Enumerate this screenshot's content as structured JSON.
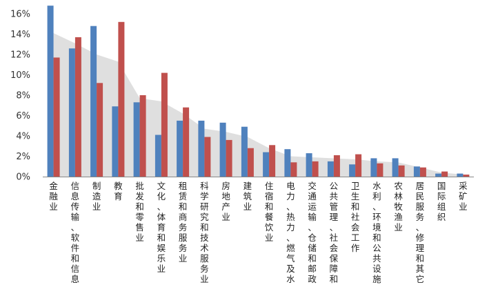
{
  "chart_data": {
    "type": "bar",
    "title": "",
    "xlabel": "",
    "ylabel": "",
    "ylim": [
      0,
      0.16
    ],
    "yticks": [
      "0%",
      "2%",
      "4%",
      "6%",
      "8%",
      "10%",
      "12%",
      "14%",
      "16%"
    ],
    "grid": false,
    "legend": "none",
    "categories": [
      "金融业",
      "信息传输、软件和信息",
      "制造业",
      "教育",
      "批发和零售业",
      "文化、体育和娱乐业",
      "租赁和商务服务业",
      "科学研究和技术服务业",
      "房地产业",
      "建筑业",
      "住宿和餐饮业",
      "电力、热力、燃气及水",
      "交通运输、仓储和邮政",
      "公共管理、社会保障和",
      "卫生和社会工作",
      "水利、环境和公共设施",
      "农林牧渔业",
      "居民服务、修理和其它",
      "国际组织",
      "采矿业"
    ],
    "series": [
      {
        "kind": "bar",
        "color": "#4F81BD",
        "values": [
          0.168,
          0.126,
          0.148,
          0.069,
          0.073,
          0.041,
          0.055,
          0.055,
          0.053,
          0.049,
          0.024,
          0.027,
          0.023,
          0.015,
          0.012,
          0.018,
          0.018,
          0.01,
          0.003,
          0.003
        ]
      },
      {
        "kind": "bar",
        "color": "#C0504D",
        "values": [
          0.117,
          0.137,
          0.092,
          0.152,
          0.08,
          0.102,
          0.068,
          0.039,
          0.036,
          0.028,
          0.031,
          0.014,
          0.015,
          0.021,
          0.022,
          0.013,
          0.011,
          0.009,
          0.005,
          0.002
        ]
      },
      {
        "kind": "area",
        "color": "#D9D9D9",
        "values": [
          0.141,
          0.131,
          0.12,
          0.113,
          0.077,
          0.074,
          0.062,
          0.047,
          0.044,
          0.039,
          0.028,
          0.02,
          0.019,
          0.018,
          0.017,
          0.015,
          0.014,
          0.009,
          0.004,
          0.002
        ]
      }
    ]
  }
}
